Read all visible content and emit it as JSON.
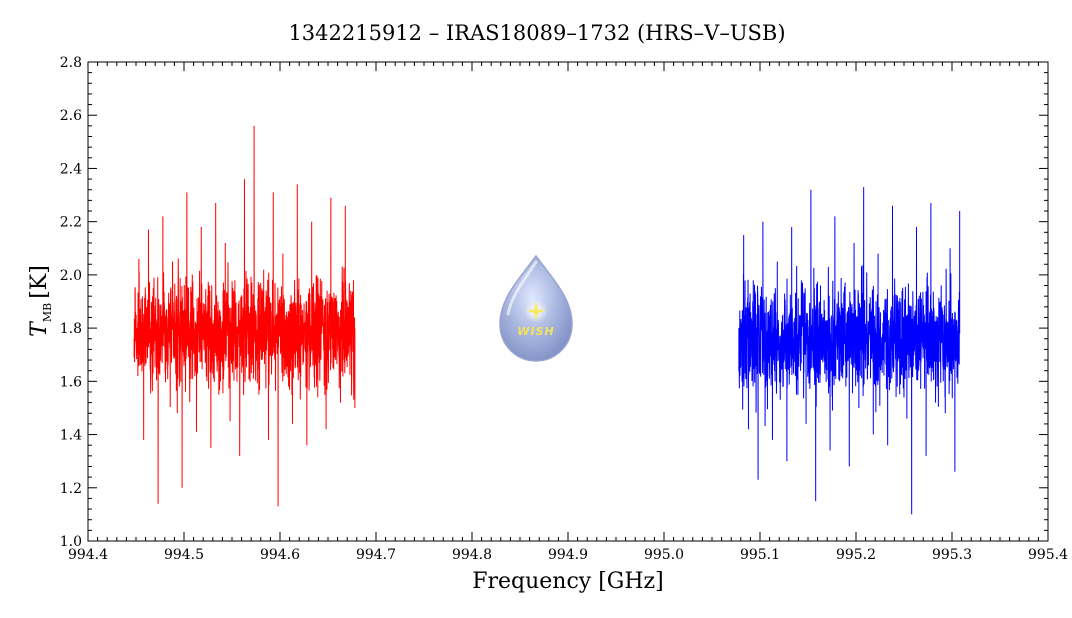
{
  "logo": {
    "text": "WISH",
    "icon": "water-drop-star-icon"
  },
  "chart_data": {
    "type": "line",
    "title": "1342215912 – IRAS18089–1732 (HRS–V–USB)",
    "xlabel": "Frequency [GHz]",
    "ylabel_main": "T",
    "ylabel_sub": "MB",
    "ylabel_unit": "[K]",
    "xlim": [
      994.4,
      995.4
    ],
    "ylim": [
      1.0,
      2.8
    ],
    "x_ticks": [
      "994.4",
      "994.5",
      "994.6",
      "994.7",
      "994.8",
      "994.9",
      "995.0",
      "995.1",
      "995.2",
      "995.3",
      "995.4"
    ],
    "y_ticks": [
      "1.0",
      "1.2",
      "1.4",
      "1.6",
      "1.8",
      "2.0",
      "2.2",
      "2.4",
      "2.6",
      "2.8"
    ],
    "grid": false,
    "series": [
      {
        "color": "#ff0000",
        "x_range": [
          994.448,
          994.678
        ],
        "mean": 1.78,
        "max": 2.565,
        "min": 1.13,
        "x": [
          994.448,
          994.453,
          994.458,
          994.463,
          994.468,
          994.473,
          994.478,
          994.483,
          994.488,
          994.493,
          994.498,
          994.503,
          994.508,
          994.513,
          994.518,
          994.523,
          994.528,
          994.533,
          994.538,
          994.543,
          994.548,
          994.553,
          994.558,
          994.563,
          994.568,
          994.573,
          994.578,
          994.583,
          994.588,
          994.593,
          994.598,
          994.603,
          994.608,
          994.613,
          994.618,
          994.623,
          994.628,
          994.633,
          994.638,
          994.643,
          994.648,
          994.653,
          994.658,
          994.663,
          994.668,
          994.673,
          994.678
        ],
        "y": [
          1.76,
          2.06,
          1.38,
          2.17,
          1.95,
          1.14,
          2.22,
          1.62,
          2.05,
          1.48,
          1.2,
          2.31,
          1.72,
          1.41,
          2.18,
          1.88,
          1.35,
          2.27,
          1.6,
          2.12,
          1.45,
          1.98,
          1.32,
          2.36,
          1.7,
          2.56,
          1.55,
          2.02,
          1.38,
          2.31,
          1.13,
          2.08,
          1.66,
          1.44,
          2.34,
          1.82,
          1.36,
          2.2,
          1.58,
          1.92,
          1.42,
          2.29,
          1.68,
          1.52,
          2.26,
          1.9,
          1.5
        ]
      },
      {
        "color": "#0000ff",
        "x_range": [
          995.078,
          995.308
        ],
        "mean": 1.76,
        "max": 2.33,
        "min": 1.1,
        "x": [
          995.078,
          995.083,
          995.088,
          995.093,
          995.098,
          995.103,
          995.108,
          995.113,
          995.118,
          995.123,
          995.128,
          995.133,
          995.138,
          995.143,
          995.148,
          995.153,
          995.158,
          995.163,
          995.168,
          995.173,
          995.178,
          995.183,
          995.188,
          995.193,
          995.198,
          995.203,
          995.208,
          995.213,
          995.218,
          995.223,
          995.228,
          995.233,
          995.238,
          995.243,
          995.248,
          995.253,
          995.258,
          995.263,
          995.268,
          995.273,
          995.278,
          995.283,
          995.288,
          995.293,
          995.298,
          995.303,
          995.308
        ],
        "y": [
          1.8,
          2.15,
          1.42,
          1.98,
          1.23,
          2.2,
          1.62,
          1.38,
          2.05,
          1.75,
          1.3,
          2.18,
          1.55,
          1.88,
          1.44,
          2.32,
          1.15,
          1.96,
          1.7,
          1.34,
          2.22,
          1.6,
          1.92,
          1.28,
          2.12,
          1.5,
          2.33,
          1.66,
          1.4,
          2.08,
          1.82,
          1.36,
          2.26,
          1.58,
          1.94,
          1.46,
          1.1,
          2.18,
          1.72,
          1.32,
          2.27,
          1.64,
          1.9,
          1.48,
          2.1,
          1.26,
          2.24
        ]
      }
    ]
  }
}
